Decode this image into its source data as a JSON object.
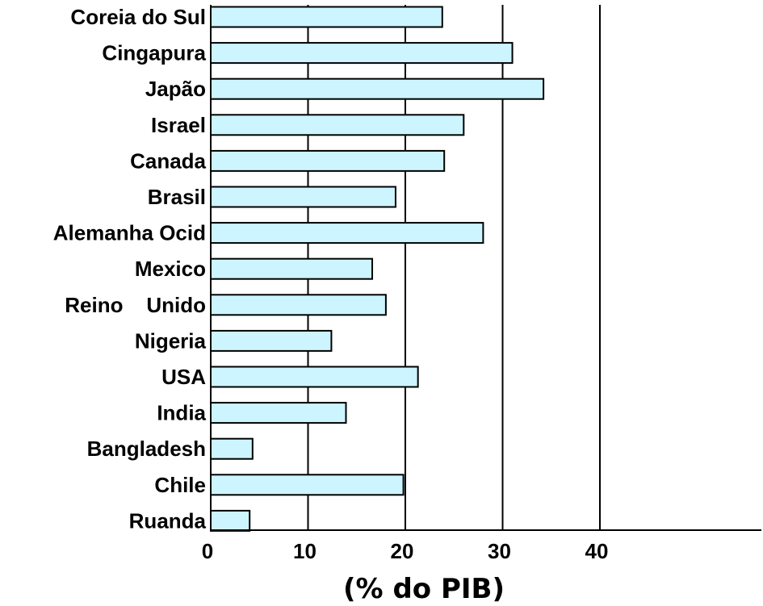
{
  "chart_data": {
    "type": "bar",
    "orientation": "horizontal",
    "categories": [
      "Coreia do Sul",
      "Cingapura",
      "Japão",
      "Israel",
      "Canada",
      "Brasil",
      "Alemanha Ocid",
      "Mexico",
      "Reino    Unido",
      "Nigeria",
      "USA",
      "India",
      "Bangladesh",
      "Chile",
      "Ruanda"
    ],
    "values": [
      23.8,
      31,
      34.2,
      26,
      24,
      19,
      28,
      16.6,
      18,
      12.4,
      21.3,
      13.9,
      4.3,
      19.8,
      4
    ],
    "xlabel": "(% do PIB)",
    "ylabel": "",
    "xlim": [
      0,
      57
    ],
    "xticks": [
      0,
      10,
      20,
      30,
      40
    ],
    "grid": true,
    "colors": {
      "bar_fill": "#ccf5ff",
      "bar_stroke": "#000000",
      "grid": "#000000"
    }
  }
}
